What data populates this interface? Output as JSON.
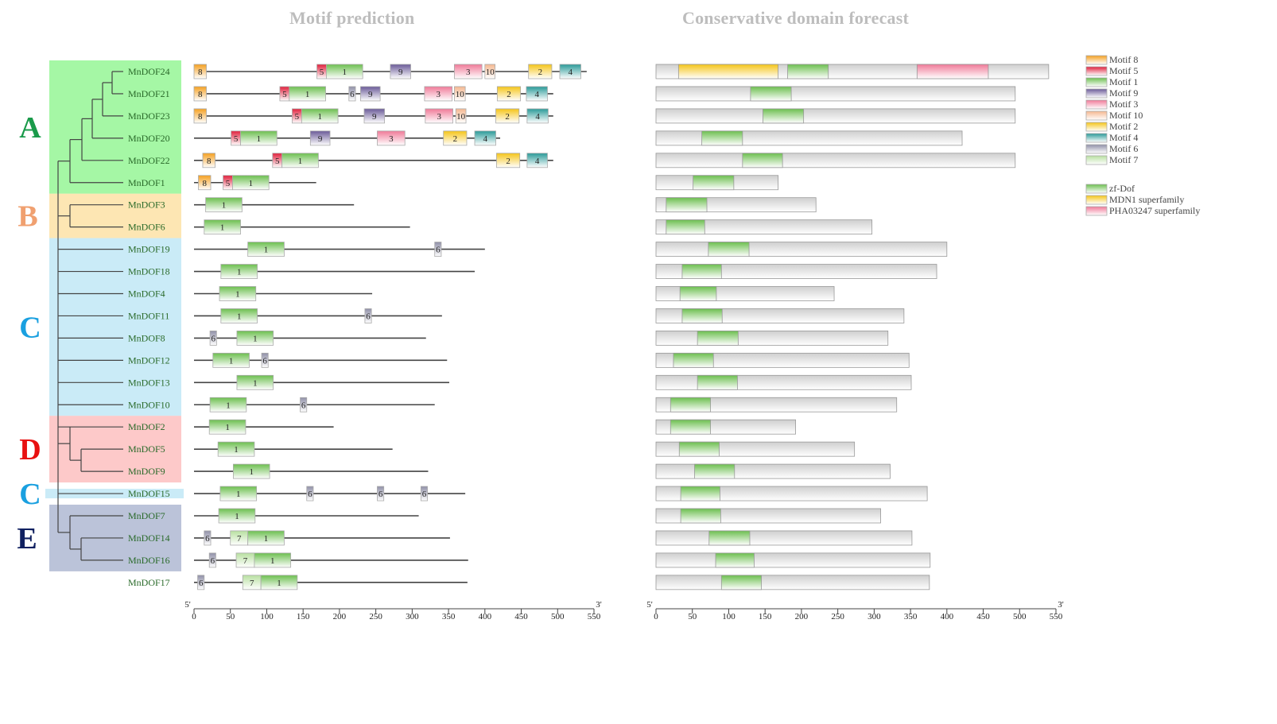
{
  "titles": {
    "motif": "Motif   prediction",
    "domain": "Conservative domain forecast"
  },
  "colors": {
    "m1": "#6cbf4f",
    "m2": "#f5c518",
    "m3": "#f07a98",
    "m4": "#2a9a98",
    "m5": "#e0203c",
    "m6": "#9090a8",
    "m7": "#b8e0a0",
    "m8": "#f5a020",
    "m9": "#6a5a98",
    "m10": "#f5b890",
    "zf-Dof": "#6cbf4f",
    "MDN1": "#f5c518",
    "PHA03247": "#f07a98",
    "protein": "#cfcfcf"
  },
  "groups": [
    {
      "label": "A",
      "color": "#1a9a4a",
      "bg": "#8ef58e",
      "rows": [
        0,
        5
      ]
    },
    {
      "label": "B",
      "color": "#f0a070",
      "bg": "#fde0a0",
      "rows": [
        6,
        7
      ]
    },
    {
      "label": "C",
      "color": "#1aa0e0",
      "bg": "#bde6f5",
      "rows": [
        8,
        15
      ]
    },
    {
      "label": "D",
      "color": "#e81010",
      "bg": "#fcbcbc",
      "rows": [
        16,
        18
      ]
    },
    {
      "label": "C",
      "color": "#1aa0e0",
      "bg": "#bde6f5",
      "rows": [
        19,
        19
      ]
    },
    {
      "label": "E",
      "color": "#102060",
      "bg": "#aab4d0",
      "rows": [
        20,
        22
      ]
    }
  ],
  "genes": [
    {
      "name": "MnDOF24",
      "len": 540,
      "motifs": [
        [
          8,
          0,
          17
        ],
        [
          5,
          169,
          182
        ],
        [
          1,
          182,
          232
        ],
        [
          9,
          270,
          298
        ],
        [
          3,
          358,
          396
        ],
        [
          10,
          400,
          414
        ],
        [
          2,
          460,
          492
        ],
        [
          4,
          503,
          532
        ]
      ],
      "domains": [
        [
          "protein",
          0,
          540
        ],
        [
          "MDN1",
          31,
          168
        ],
        [
          "zf-Dof",
          181,
          237
        ],
        [
          "PHA03247",
          359,
          457
        ]
      ]
    },
    {
      "name": "MnDOF21",
      "len": 494,
      "motifs": [
        [
          8,
          0,
          17
        ],
        [
          5,
          118,
          131
        ],
        [
          1,
          131,
          181
        ],
        [
          6,
          213,
          222
        ],
        [
          9,
          229,
          256
        ],
        [
          3,
          317,
          355
        ],
        [
          10,
          358,
          373
        ],
        [
          2,
          417,
          449
        ],
        [
          4,
          457,
          486
        ]
      ],
      "domains": [
        [
          "protein",
          0,
          494
        ],
        [
          "zf-Dof",
          130,
          186
        ]
      ]
    },
    {
      "name": "MnDOF23",
      "len": 494,
      "motifs": [
        [
          8,
          0,
          17
        ],
        [
          5,
          135,
          148
        ],
        [
          1,
          148,
          198
        ],
        [
          9,
          234,
          262
        ],
        [
          3,
          318,
          356
        ],
        [
          10,
          360,
          374
        ],
        [
          2,
          415,
          447
        ],
        [
          4,
          458,
          487
        ]
      ],
      "domains": [
        [
          "protein",
          0,
          494
        ],
        [
          "zf-Dof",
          147,
          203
        ]
      ]
    },
    {
      "name": "MnDOF20",
      "len": 421,
      "motifs": [
        [
          5,
          51,
          64
        ],
        [
          1,
          64,
          114
        ],
        [
          9,
          160,
          187
        ],
        [
          3,
          252,
          290
        ],
        [
          2,
          343,
          375
        ],
        [
          4,
          386,
          415
        ]
      ],
      "domains": [
        [
          "protein",
          0,
          421
        ],
        [
          "zf-Dof",
          63,
          119
        ]
      ]
    },
    {
      "name": "MnDOF22",
      "len": 494,
      "motifs": [
        [
          8,
          12,
          29
        ],
        [
          5,
          108,
          121
        ],
        [
          1,
          121,
          171
        ],
        [
          2,
          416,
          448
        ],
        [
          4,
          458,
          486
        ]
      ],
      "domains": [
        [
          "protein",
          0,
          494
        ],
        [
          "zf-Dof",
          119,
          174
        ]
      ]
    },
    {
      "name": "MnDOF1",
      "len": 168,
      "motifs": [
        [
          8,
          6,
          23
        ],
        [
          5,
          40,
          53
        ],
        [
          1,
          53,
          103
        ]
      ],
      "domains": [
        [
          "protein",
          0,
          168
        ],
        [
          "zf-Dof",
          51,
          107
        ]
      ]
    },
    {
      "name": "MnDOF3",
      "len": 220,
      "motifs": [
        [
          1,
          16,
          66
        ]
      ],
      "domains": [
        [
          "protein",
          0,
          220
        ],
        [
          "zf-Dof",
          14,
          70
        ]
      ]
    },
    {
      "name": "MnDOF6",
      "len": 297,
      "motifs": [
        [
          1,
          14,
          64
        ]
      ],
      "domains": [
        [
          "protein",
          0,
          297
        ],
        [
          "zf-Dof",
          14,
          67
        ]
      ]
    },
    {
      "name": "MnDOF19",
      "len": 400,
      "motifs": [
        [
          1,
          74,
          124
        ],
        [
          6,
          331,
          340
        ]
      ],
      "domains": [
        [
          "protein",
          0,
          400
        ],
        [
          "zf-Dof",
          72,
          128
        ]
      ]
    },
    {
      "name": "MnDOF18",
      "len": 386,
      "motifs": [
        [
          1,
          37,
          87
        ]
      ],
      "domains": [
        [
          "protein",
          0,
          386
        ],
        [
          "zf-Dof",
          36,
          90
        ]
      ]
    },
    {
      "name": "MnDOF4",
      "len": 245,
      "motifs": [
        [
          1,
          35,
          85
        ]
      ],
      "domains": [
        [
          "protein",
          0,
          245
        ],
        [
          "zf-Dof",
          33,
          83
        ]
      ]
    },
    {
      "name": "MnDOF11",
      "len": 341,
      "motifs": [
        [
          1,
          37,
          87
        ],
        [
          6,
          235,
          244
        ]
      ],
      "domains": [
        [
          "protein",
          0,
          341
        ],
        [
          "zf-Dof",
          36,
          91
        ]
      ]
    },
    {
      "name": "MnDOF8",
      "len": 319,
      "motifs": [
        [
          6,
          22,
          31
        ],
        [
          1,
          59,
          109
        ]
      ],
      "domains": [
        [
          "protein",
          0,
          319
        ],
        [
          "zf-Dof",
          57,
          113
        ]
      ]
    },
    {
      "name": "MnDOF12",
      "len": 348,
      "motifs": [
        [
          1,
          26,
          76
        ],
        [
          6,
          93,
          102
        ]
      ],
      "domains": [
        [
          "protein",
          0,
          348
        ],
        [
          "zf-Dof",
          24,
          79
        ]
      ]
    },
    {
      "name": "MnDOF13",
      "len": 351,
      "motifs": [
        [
          1,
          59,
          109
        ]
      ],
      "domains": [
        [
          "protein",
          0,
          351
        ],
        [
          "zf-Dof",
          57,
          112
        ]
      ]
    },
    {
      "name": "MnDOF10",
      "len": 331,
      "motifs": [
        [
          1,
          22,
          72
        ],
        [
          6,
          146,
          155
        ]
      ],
      "domains": [
        [
          "protein",
          0,
          331
        ],
        [
          "zf-Dof",
          20,
          75
        ]
      ]
    },
    {
      "name": "MnDOF2",
      "len": 192,
      "motifs": [
        [
          1,
          21,
          71
        ]
      ],
      "domains": [
        [
          "protein",
          0,
          192
        ],
        [
          "zf-Dof",
          20,
          75
        ]
      ]
    },
    {
      "name": "MnDOF5",
      "len": 273,
      "motifs": [
        [
          1,
          33,
          83
        ]
      ],
      "domains": [
        [
          "protein",
          0,
          273
        ],
        [
          "zf-Dof",
          32,
          87
        ]
      ]
    },
    {
      "name": "MnDOF9",
      "len": 322,
      "motifs": [
        [
          1,
          54,
          104
        ]
      ],
      "domains": [
        [
          "protein",
          0,
          322
        ],
        [
          "zf-Dof",
          53,
          108
        ]
      ]
    },
    {
      "name": "MnDOF15",
      "len": 373,
      "motifs": [
        [
          1,
          36,
          86
        ],
        [
          6,
          155,
          164
        ],
        [
          6,
          252,
          261
        ],
        [
          6,
          312,
          321
        ]
      ],
      "domains": [
        [
          "protein",
          0,
          373
        ],
        [
          "zf-Dof",
          34,
          88
        ]
      ]
    },
    {
      "name": "MnDOF7",
      "len": 309,
      "motifs": [
        [
          1,
          34,
          84
        ]
      ],
      "domains": [
        [
          "protein",
          0,
          309
        ],
        [
          "zf-Dof",
          34,
          89
        ]
      ]
    },
    {
      "name": "MnDOF14",
      "len": 352,
      "motifs": [
        [
          6,
          14,
          23
        ],
        [
          7,
          50,
          74
        ],
        [
          1,
          74,
          124
        ]
      ],
      "domains": [
        [
          "protein",
          0,
          352
        ],
        [
          "zf-Dof",
          73,
          129
        ]
      ]
    },
    {
      "name": "MnDOF16",
      "len": 377,
      "motifs": [
        [
          6,
          21,
          30
        ],
        [
          7,
          58,
          83
        ],
        [
          1,
          83,
          133
        ]
      ],
      "domains": [
        [
          "protein",
          0,
          377
        ],
        [
          "zf-Dof",
          82,
          135
        ]
      ]
    },
    {
      "name": "MnDOF17",
      "len": 376,
      "motifs": [
        [
          6,
          5,
          14
        ],
        [
          7,
          67,
          92
        ],
        [
          1,
          92,
          142
        ]
      ],
      "domains": [
        [
          "protein",
          0,
          376
        ],
        [
          "zf-Dof",
          90,
          145
        ]
      ]
    }
  ],
  "axis": {
    "ticks": [
      0,
      50,
      100,
      150,
      200,
      250,
      300,
      350,
      400,
      450,
      500,
      550
    ],
    "left_end": "5'",
    "right_end": "3'",
    "max": 550
  },
  "legend_motifs": [
    {
      "key": "m8",
      "label": "Motif 8"
    },
    {
      "key": "m5",
      "label": "Motif 5"
    },
    {
      "key": "m1",
      "label": "Motif 1"
    },
    {
      "key": "m9",
      "label": "Motif 9"
    },
    {
      "key": "m3",
      "label": "Motif 3"
    },
    {
      "key": "m10",
      "label": "Motif 10"
    },
    {
      "key": "m2",
      "label": "Motif 2"
    },
    {
      "key": "m4",
      "label": "Motif 4"
    },
    {
      "key": "m6",
      "label": "Motif 6"
    },
    {
      "key": "m7",
      "label": "Motif 7"
    }
  ],
  "legend_domains": [
    {
      "key": "zf-Dof",
      "label": "zf-Dof"
    },
    {
      "key": "MDN1",
      "label": "MDN1 superfamily"
    },
    {
      "key": "PHA03247",
      "label": "PHA03247 superfamily"
    }
  ]
}
